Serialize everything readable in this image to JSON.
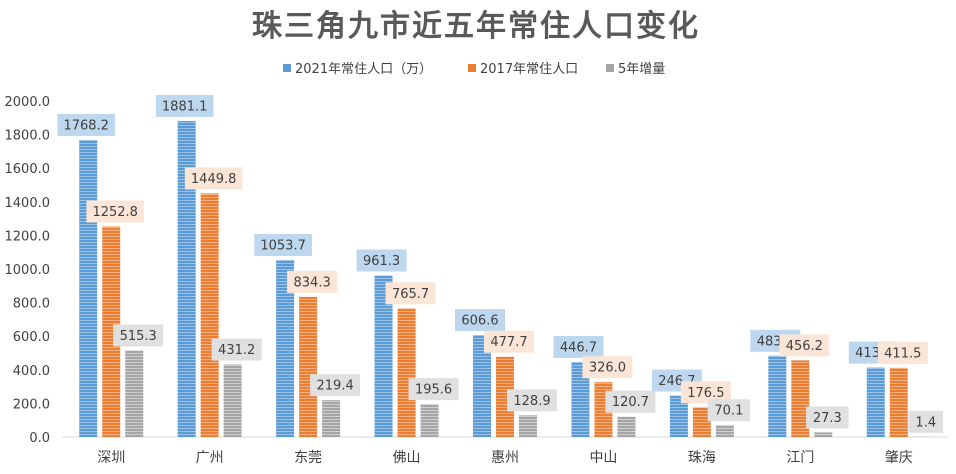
{
  "chart_data": {
    "type": "bar",
    "title": "珠三角九市近五年常住人口变化",
    "categories": [
      "深圳",
      "广州",
      "东莞",
      "佛山",
      "惠州",
      "中山",
      "珠海",
      "江门",
      "肇庆"
    ],
    "series": [
      {
        "name": "2021年常住人口（万）",
        "color": "#5b9bd5",
        "label_bg": "#bdd7ee",
        "values": [
          1768.2,
          1881.1,
          1053.7,
          961.3,
          606.6,
          446.7,
          246.7,
          483.5,
          413.0
        ]
      },
      {
        "name": "2017年常住人口",
        "color": "#ed7d31",
        "label_bg": "#fbe5d6",
        "values": [
          1252.8,
          1449.8,
          834.3,
          765.7,
          477.7,
          326.0,
          176.5,
          456.2,
          411.5
        ]
      },
      {
        "name": "5年增量",
        "color": "#a5a5a5",
        "label_bg": "#e0e0e0",
        "values": [
          515.3,
          431.2,
          219.4,
          195.6,
          128.9,
          120.7,
          70.1,
          27.3,
          1.4
        ]
      }
    ],
    "ylim": [
      0,
      2000
    ],
    "yticks": [
      "0.0",
      "200.0",
      "400.0",
      "600.0",
      "800.0",
      "1000.0",
      "1200.0",
      "1400.0",
      "1600.0",
      "1800.0",
      "2000.0"
    ],
    "legend_position": "top",
    "grid": false
  }
}
